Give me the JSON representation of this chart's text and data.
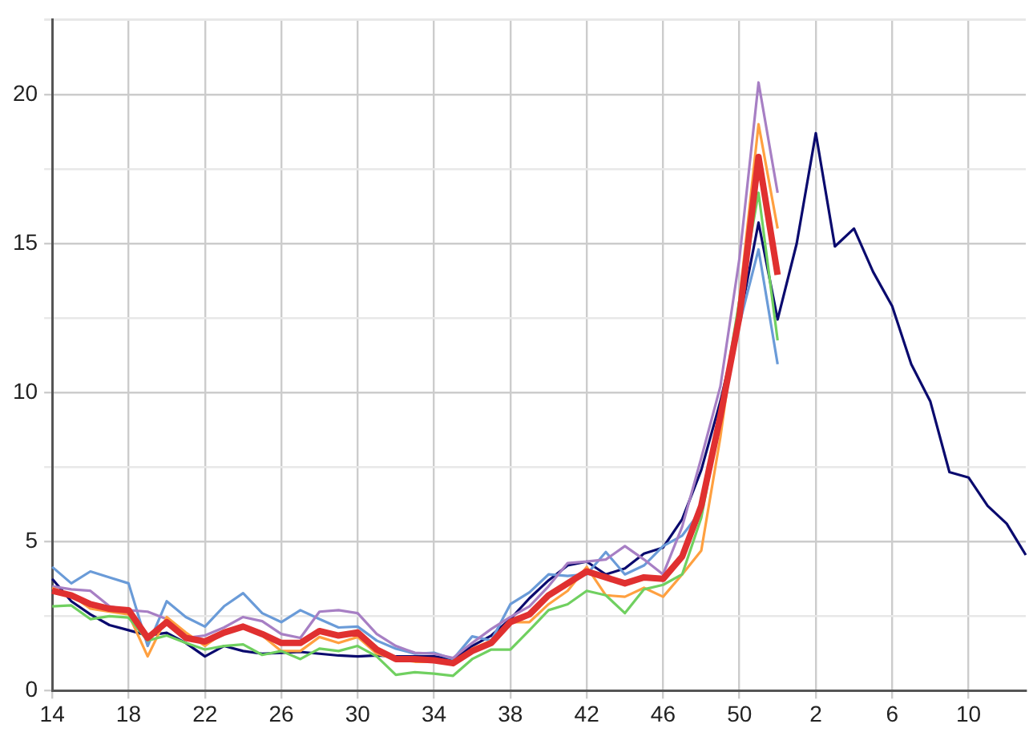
{
  "chart_data": {
    "type": "line",
    "categories": [
      "14",
      null,
      null,
      null,
      "18",
      null,
      null,
      null,
      "22",
      null,
      null,
      null,
      "26",
      null,
      null,
      null,
      "30",
      null,
      null,
      null,
      "34",
      null,
      null,
      null,
      "38",
      null,
      null,
      null,
      "42",
      null,
      null,
      null,
      "46",
      null,
      null,
      null,
      "50",
      null,
      null,
      null,
      "2",
      null,
      null,
      null,
      "6",
      null,
      null,
      null,
      "10",
      null,
      null,
      null
    ],
    "series": [
      {
        "color": "#0a0a6e",
        "values": [
          3.75,
          3.0,
          2.56,
          2.2,
          2.03,
          1.85,
          1.94,
          1.6,
          1.15,
          1.5,
          1.33,
          1.24,
          1.27,
          1.3,
          1.24,
          1.18,
          1.15,
          1.18,
          1.15,
          1.15,
          1.15,
          1.06,
          1.5,
          1.85,
          2.4,
          3.1,
          3.7,
          4.2,
          4.33,
          3.9,
          4.1,
          4.6,
          4.8,
          5.75,
          7.4,
          9.7,
          12.4,
          15.7,
          12.45,
          15.0,
          18.7,
          14.9,
          15.5,
          14.05,
          12.9,
          10.95,
          9.7,
          7.33,
          7.15,
          6.2,
          5.6,
          4.55
        ]
      },
      {
        "color": "#6a9bd8",
        "values": [
          4.15,
          3.6,
          4.0,
          3.8,
          3.6,
          1.5,
          3.0,
          2.47,
          2.15,
          2.83,
          3.27,
          2.6,
          2.3,
          2.7,
          2.4,
          2.12,
          2.15,
          1.68,
          1.41,
          1.24,
          1.27,
          1.06,
          1.82,
          1.68,
          2.9,
          3.3,
          3.9,
          3.85,
          3.9,
          4.65,
          3.9,
          4.2,
          4.85,
          5.2,
          6.05,
          9.3,
          12.3,
          14.8,
          10.95,
          null,
          null,
          null,
          null,
          null,
          null,
          null,
          null,
          null,
          null,
          null,
          null,
          null
        ]
      },
      {
        "color": "#a77fc4",
        "values": [
          3.5,
          3.4,
          3.35,
          2.83,
          2.7,
          2.65,
          2.4,
          1.77,
          1.85,
          2.12,
          2.47,
          2.33,
          1.9,
          1.77,
          2.65,
          2.7,
          2.6,
          1.9,
          1.5,
          1.27,
          1.24,
          1.1,
          1.6,
          2.07,
          2.47,
          2.83,
          3.5,
          4.28,
          4.33,
          4.4,
          4.85,
          4.4,
          3.9,
          5.5,
          7.8,
          10.2,
          14.5,
          20.4,
          16.7,
          null,
          null,
          null,
          null,
          null,
          null,
          null,
          null,
          null,
          null,
          null,
          null,
          null
        ]
      },
      {
        "color": "#ffa040",
        "values": [
          3.45,
          3.2,
          2.75,
          2.65,
          2.56,
          1.15,
          2.47,
          1.95,
          1.5,
          1.95,
          2.2,
          1.85,
          1.33,
          1.33,
          1.8,
          1.6,
          1.8,
          1.24,
          1.06,
          0.97,
          0.97,
          0.88,
          1.41,
          1.68,
          2.3,
          2.3,
          2.9,
          3.35,
          4.15,
          3.2,
          3.15,
          3.45,
          3.15,
          3.9,
          4.7,
          8.5,
          13.1,
          19.0,
          15.5,
          null,
          null,
          null,
          null,
          null,
          null,
          null,
          null,
          null,
          null,
          null,
          null,
          null
        ]
      },
      {
        "color": "#70d060",
        "values": [
          2.83,
          2.86,
          2.4,
          2.5,
          2.45,
          1.68,
          1.85,
          1.6,
          1.38,
          1.5,
          1.55,
          1.2,
          1.33,
          1.06,
          1.41,
          1.33,
          1.5,
          1.15,
          0.53,
          0.62,
          0.57,
          0.5,
          1.06,
          1.38,
          1.38,
          2.03,
          2.7,
          2.9,
          3.35,
          3.2,
          2.6,
          3.4,
          3.55,
          3.9,
          5.8,
          9.2,
          13.1,
          16.7,
          11.75,
          null,
          null,
          null,
          null,
          null,
          null,
          null,
          null,
          null,
          null,
          null,
          null,
          null
        ]
      },
      {
        "color": "#e03030",
        "values": [
          3.35,
          3.2,
          2.9,
          2.75,
          2.7,
          1.77,
          2.3,
          1.77,
          1.65,
          1.95,
          2.15,
          1.9,
          1.6,
          1.6,
          2.0,
          1.85,
          1.95,
          1.38,
          1.06,
          1.06,
          1.02,
          0.92,
          1.33,
          1.6,
          2.3,
          2.56,
          3.2,
          3.6,
          4.0,
          3.8,
          3.6,
          3.8,
          3.75,
          4.5,
          6.2,
          9.2,
          12.55,
          17.9,
          13.95,
          null,
          null,
          null,
          null,
          null,
          null,
          null,
          null,
          null,
          null,
          null,
          null,
          null
        ]
      }
    ],
    "ylim": [
      0,
      22.5
    ],
    "yticks": [
      0,
      {
        "value": 2.5,
        "label": null
      },
      5,
      {
        "value": 7.5,
        "label": null
      },
      10,
      {
        "value": 12.5,
        "label": null
      },
      15,
      {
        "value": 17.5,
        "label": null
      },
      20,
      {
        "value": 22.5,
        "label": null
      }
    ],
    "grid": true,
    "legend": false,
    "marker": "none",
    "line_style": "solid"
  }
}
